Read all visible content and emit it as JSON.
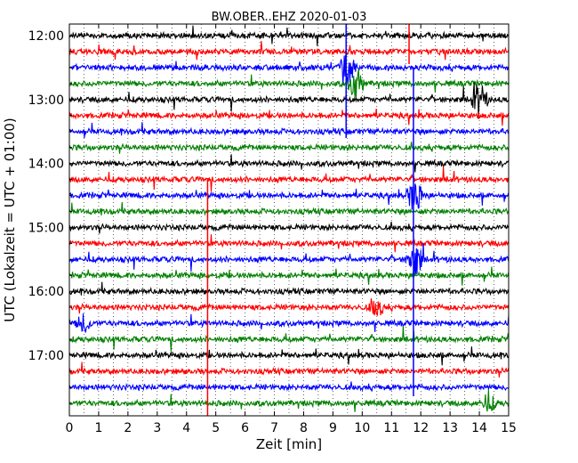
{
  "chart_data": {
    "type": "line",
    "title": "BW.OBER..EHZ 2020-01-03",
    "xlabel": "Zeit  [min]",
    "ylabel": "UTC (Lokalzeit = UTC + 01:00)",
    "xlim": [
      0,
      15
    ],
    "x_ticks": [
      "0",
      "1",
      "2",
      "3",
      "4",
      "5",
      "6",
      "7",
      "8",
      "9",
      "10",
      "11",
      "12",
      "13",
      "14",
      "15"
    ],
    "y_tick_labels": [
      "12:00",
      "13:00",
      "14:00",
      "15:00",
      "16:00",
      "17:00"
    ],
    "grid": "vertical dotted every 0.5 min",
    "trace_colors": [
      "#000000",
      "#ff0000",
      "#0000ff",
      "#008000"
    ],
    "trace_start_times": [
      "12:00",
      "12:15",
      "12:30",
      "12:45",
      "13:00",
      "13:15",
      "13:30",
      "13:45",
      "14:00",
      "14:15",
      "14:30",
      "14:45",
      "15:00",
      "15:15",
      "15:30",
      "15:45",
      "16:00",
      "16:15",
      "16:30",
      "16:45",
      "17:00",
      "17:15",
      "17:30",
      "17:45"
    ],
    "notable_events": [
      {
        "trace": "12:30",
        "minute": 9.5,
        "amplitude": "large"
      },
      {
        "trace": "12:45",
        "minute": 9.8,
        "amplitude": "large"
      },
      {
        "trace": "13:00",
        "minute": 14.0,
        "amplitude": "large"
      },
      {
        "trace": "14:30",
        "minute": 11.8,
        "amplitude": "large"
      },
      {
        "trace": "15:30",
        "minute": 11.8,
        "amplitude": "large"
      },
      {
        "trace": "16:15",
        "minute": 10.5,
        "amplitude": "medium"
      },
      {
        "trace": "16:30",
        "minute": 0.5,
        "amplitude": "medium"
      },
      {
        "trace": "17:45",
        "minute": 14.3,
        "amplitude": "medium"
      }
    ]
  }
}
